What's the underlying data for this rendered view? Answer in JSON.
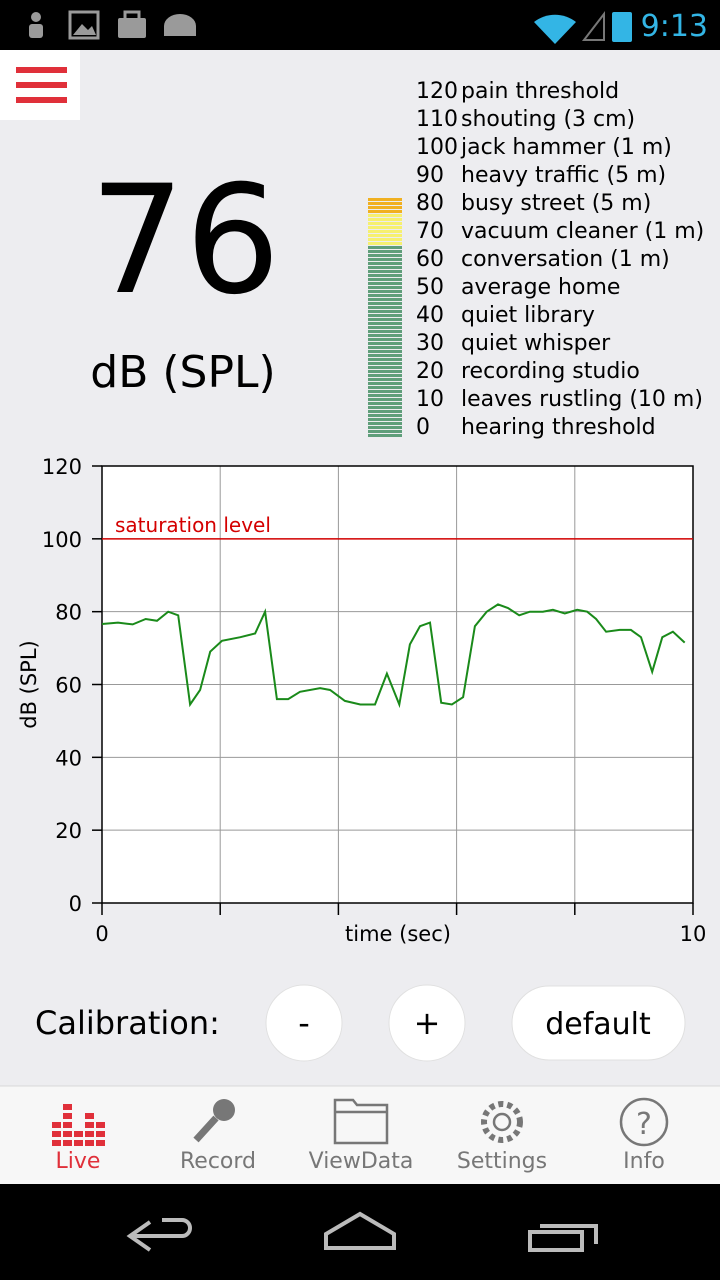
{
  "status_bar": {
    "time": "9:13"
  },
  "reading": {
    "value": "76",
    "unit": "dB (SPL)"
  },
  "scale": [
    {
      "level": "120",
      "label": "pain threshold"
    },
    {
      "level": "110",
      "label": "shouting (3 cm)"
    },
    {
      "level": "100",
      "label": "jack hammer (1 m)"
    },
    {
      "level": "90",
      "label": "heavy traffic (5 m)"
    },
    {
      "level": "80",
      "label": "busy street (5 m)"
    },
    {
      "level": "70",
      "label": "vacuum cleaner (1 m)"
    },
    {
      "level": "60",
      "label": "conversation (1 m)"
    },
    {
      "level": "50",
      "label": "average home"
    },
    {
      "level": "40",
      "label": "quiet library"
    },
    {
      "level": "30",
      "label": "quiet whisper"
    },
    {
      "level": "20",
      "label": "recording studio"
    },
    {
      "level": "10",
      "label": "leaves rustling (10 m)"
    },
    {
      "level": "0",
      "label": "hearing threshold"
    }
  ],
  "chart_data": {
    "type": "line",
    "y_label": "dB (SPL)",
    "x_label": "time (sec)",
    "xlim": [
      0,
      10
    ],
    "xticks": [
      0,
      10
    ],
    "xminor": [
      2,
      4,
      6,
      8
    ],
    "ylim": [
      0,
      120
    ],
    "yticks": [
      0,
      20,
      40,
      60,
      80,
      100,
      120
    ],
    "grid": true,
    "reference_line": {
      "value": 100,
      "label": "saturation level",
      "color": "#d40000"
    },
    "x": [
      0,
      0.27,
      0.52,
      0.74,
      0.93,
      1.12,
      1.29,
      1.49,
      1.66,
      1.83,
      2.03,
      2.34,
      2.59,
      2.76,
      2.96,
      3.15,
      3.35,
      3.69,
      3.86,
      4.11,
      4.37,
      4.62,
      4.82,
      5.03,
      5.21,
      5.38,
      5.55,
      5.74,
      5.92,
      6.11,
      6.31,
      6.51,
      6.7,
      6.87,
      7.06,
      7.24,
      7.46,
      7.63,
      7.83,
      8.04,
      8.21,
      8.36,
      8.53,
      8.76,
      8.95,
      9.12,
      9.31,
      9.48,
      9.66,
      9.86
    ],
    "series": [
      {
        "color": "#1a8a1a",
        "values": [
          76.6,
          77,
          76.5,
          78,
          77.5,
          80,
          79,
          54.5,
          58.5,
          69,
          72,
          73,
          74,
          80,
          56,
          56,
          58,
          59,
          58.5,
          55.5,
          54.5,
          54.5,
          63,
          54.5,
          71,
          76,
          77,
          55,
          54.5,
          56.5,
          76,
          80,
          82,
          81,
          79,
          80,
          80,
          80.5,
          79.5,
          80.5,
          80,
          78,
          74.5,
          75,
          75,
          73,
          63.5,
          73,
          74.5,
          71.5
        ]
      }
    ]
  },
  "calibration": {
    "label": "Calibration:",
    "buttons": [
      "-",
      "+",
      "default"
    ]
  },
  "nav": [
    "Live",
    "Record",
    "ViewData",
    "Settings",
    "Info"
  ]
}
